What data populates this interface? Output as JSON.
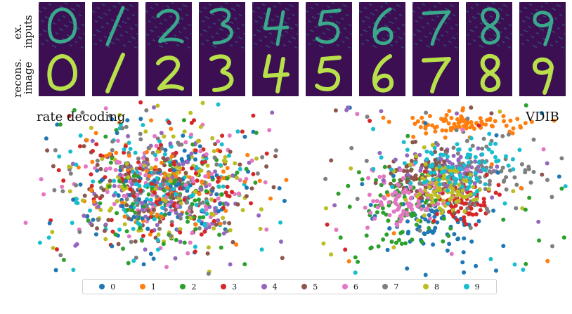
{
  "rows": {
    "inputs_label": "ex.\ninputs",
    "recons_label": "recons.\nimage"
  },
  "digits": [
    "0",
    "1",
    "2",
    "3",
    "4",
    "5",
    "6",
    "7",
    "8",
    "9"
  ],
  "colors": {
    "tile_bg": "#3b0f52",
    "tile_noisy": "#3aa88a",
    "tile_clean": "#b8e04a",
    "class_colors": [
      "#1f77b4",
      "#ff7f0e",
      "#2ca02c",
      "#d62728",
      "#9467bd",
      "#8c564b",
      "#e377c2",
      "#7f7f7f",
      "#bcbd22",
      "#17becf"
    ]
  },
  "chart_data": [
    {
      "type": "scatter",
      "title": "rate decoding",
      "legend": [
        "0",
        "1",
        "2",
        "3",
        "4",
        "5",
        "6",
        "7",
        "8",
        "9"
      ],
      "legend_placement": "bottom",
      "grid": false
    },
    {
      "type": "scatter",
      "title": "VDIB",
      "legend": [
        "0",
        "1",
        "2",
        "3",
        "4",
        "5",
        "6",
        "7",
        "8",
        "9"
      ],
      "legend_placement": "bottom",
      "grid": false
    }
  ]
}
